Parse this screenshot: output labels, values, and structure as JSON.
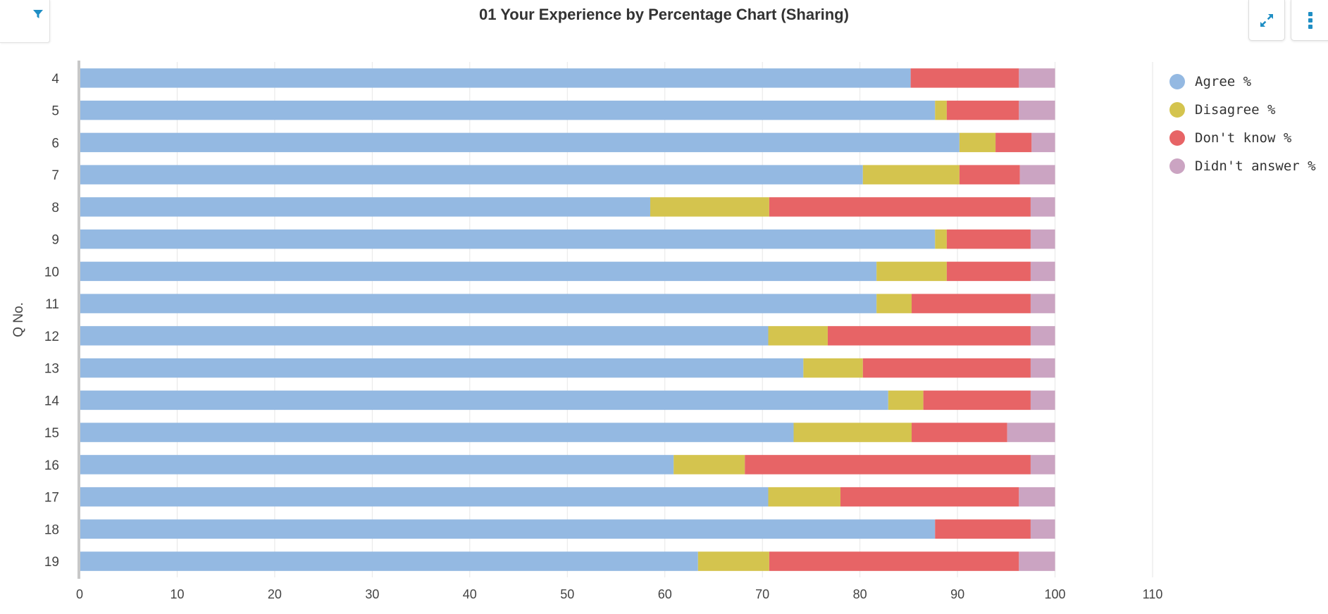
{
  "header": {
    "title": "01 Your Experience by Percentage Chart (Sharing)",
    "filter_icon": "filter-icon",
    "expand_icon": "expand-icon",
    "more_icon": "more-vertical-icon",
    "accent_color": "#1f8ec4"
  },
  "chart_data": {
    "type": "bar",
    "orientation": "horizontal",
    "stacked": true,
    "title": "01 Your Experience by Percentage Chart (Sharing)",
    "ylabel": "Q No.",
    "xlabel": "",
    "categories": [
      "4",
      "5",
      "6",
      "7",
      "8",
      "9",
      "10",
      "11",
      "12",
      "13",
      "14",
      "15",
      "16",
      "17",
      "18",
      "19"
    ],
    "xlim": [
      0,
      110
    ],
    "xticks": [
      0,
      10,
      20,
      30,
      40,
      50,
      60,
      70,
      80,
      90,
      100,
      110
    ],
    "grid": true,
    "legend_position": "top-right",
    "series": [
      {
        "name": "Agree %",
        "color": "#94b9e2",
        "values": [
          85.2,
          87.7,
          90.2,
          80.3,
          58.5,
          87.7,
          81.7,
          81.7,
          70.6,
          74.2,
          82.9,
          73.2,
          60.9,
          70.6,
          87.7,
          63.4
        ]
      },
      {
        "name": "Disagree %",
        "color": "#d4c44e",
        "values": [
          0,
          1.2,
          3.7,
          9.9,
          12.2,
          1.2,
          7.2,
          3.6,
          6.1,
          6.1,
          3.6,
          12.1,
          7.3,
          7.4,
          0,
          7.3
        ]
      },
      {
        "name": "Don't know %",
        "color": "#e76466",
        "values": [
          11.1,
          7.4,
          3.7,
          6.2,
          26.8,
          8.6,
          8.6,
          12.2,
          20.8,
          17.2,
          11,
          9.8,
          29.3,
          18.3,
          9.8,
          25.6
        ]
      },
      {
        "name": "Didn't answer %",
        "color": "#cba4c2",
        "values": [
          3.7,
          3.7,
          2.4,
          3.6,
          2.5,
          2.5,
          2.5,
          2.5,
          2.5,
          2.5,
          2.5,
          4.9,
          2.5,
          3.7,
          2.5,
          3.7
        ]
      }
    ]
  }
}
